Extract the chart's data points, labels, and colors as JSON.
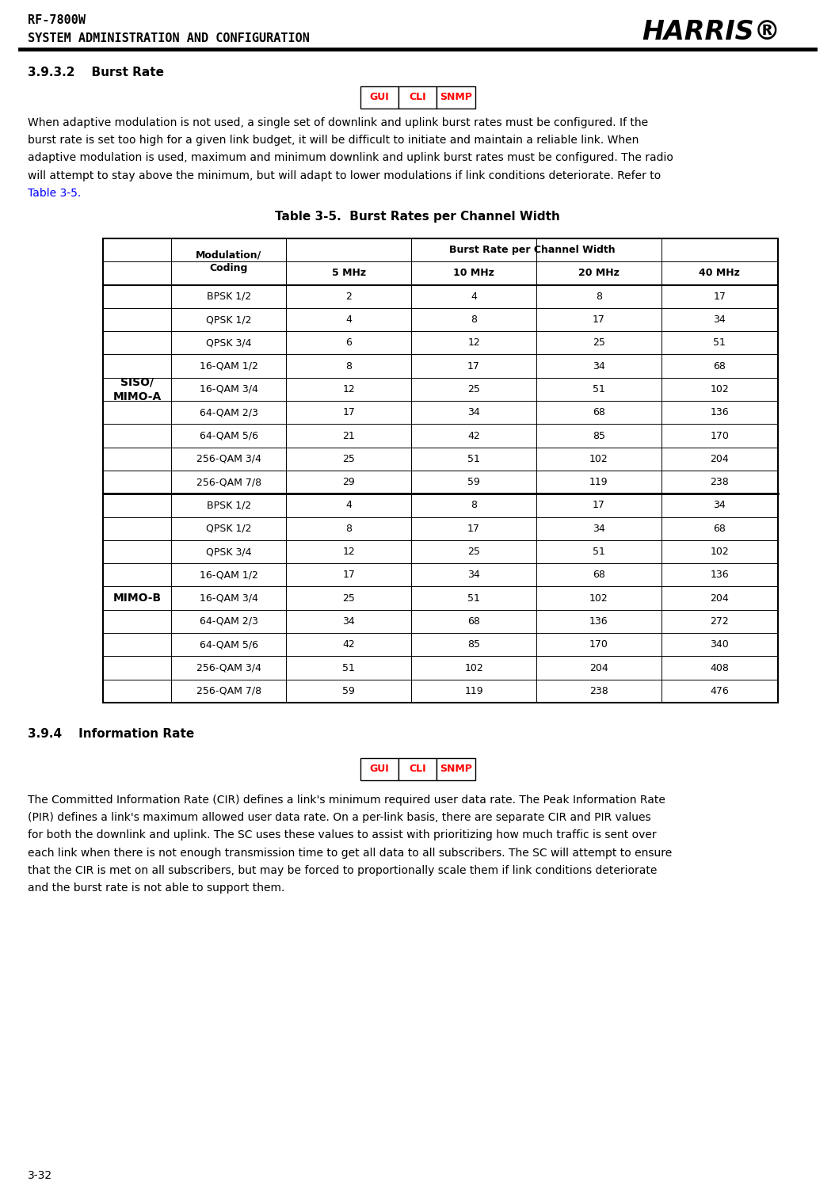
{
  "header_line1": "RF-7800W",
  "header_line2": "SYSTEM ADMINISTRATION AND CONFIGURATION",
  "section_title": "3.9.3.2    Burst Rate",
  "section2_title": "3.9.4    Information Rate",
  "gui_cli_snmp": [
    "GUI",
    "CLI",
    "SNMP"
  ],
  "paragraph1_lines": [
    "When adaptive modulation is not used, a single set of downlink and uplink burst rates must be configured. If the",
    "burst rate is set too high for a given link budget, it will be difficult to initiate and maintain a reliable link. When",
    "adaptive modulation is used, maximum and minimum downlink and uplink burst rates must be configured. The radio",
    "will attempt to stay above the minimum, but will adapt to lower modulations if link conditions deteriorate. Refer to",
    "Table 3-5."
  ],
  "paragraph1_link_line_idx": 4,
  "paragraph1_link_text": "Table 3-5.",
  "table_title": "Table 3-5.  Burst Rates per Channel Width",
  "table_row_group1_label": "SISO/\nMIMO-A",
  "table_row_group2_label": "MIMO-B",
  "table_rows_group1": [
    [
      "BPSK 1/2",
      "2",
      "4",
      "8",
      "17"
    ],
    [
      "QPSK 1/2",
      "4",
      "8",
      "17",
      "34"
    ],
    [
      "QPSK 3/4",
      "6",
      "12",
      "25",
      "51"
    ],
    [
      "16-QAM 1/2",
      "8",
      "17",
      "34",
      "68"
    ],
    [
      "16-QAM 3/4",
      "12",
      "25",
      "51",
      "102"
    ],
    [
      "64-QAM 2/3",
      "17",
      "34",
      "68",
      "136"
    ],
    [
      "64-QAM 5/6",
      "21",
      "42",
      "85",
      "170"
    ],
    [
      "256-QAM 3/4",
      "25",
      "51",
      "102",
      "204"
    ],
    [
      "256-QAM 7/8",
      "29",
      "59",
      "119",
      "238"
    ]
  ],
  "table_rows_group2": [
    [
      "BPSK 1/2",
      "4",
      "8",
      "17",
      "34"
    ],
    [
      "QPSK 1/2",
      "8",
      "17",
      "34",
      "68"
    ],
    [
      "QPSK 3/4",
      "12",
      "25",
      "51",
      "102"
    ],
    [
      "16-QAM 1/2",
      "17",
      "34",
      "68",
      "136"
    ],
    [
      "16-QAM 3/4",
      "25",
      "51",
      "102",
      "204"
    ],
    [
      "64-QAM 2/3",
      "34",
      "68",
      "136",
      "272"
    ],
    [
      "64-QAM 5/6",
      "42",
      "85",
      "170",
      "340"
    ],
    [
      "256-QAM 3/4",
      "51",
      "102",
      "204",
      "408"
    ],
    [
      "256-QAM 7/8",
      "59",
      "119",
      "238",
      "476"
    ]
  ],
  "paragraph2_lines": [
    "The Committed Information Rate (CIR) defines a link's minimum required user data rate. The Peak Information Rate",
    "(PIR) defines a link's maximum allowed user data rate. On a per-link basis, there are separate CIR and PIR values",
    "for both the downlink and uplink. The SC uses these values to assist with prioritizing how much traffic is sent over",
    "each link when there is not enough transmission time to get all data to all subscribers. The SC will attempt to ensure",
    "that the CIR is met on all subscribers, but may be forced to proportionally scale them if link conditions deteriorate",
    "and the burst rate is not able to support them."
  ],
  "footer_text": "3-32",
  "bg_color": "#ffffff",
  "text_color": "#000000",
  "gui_color": "#ff0000",
  "cli_color": "#ff0000",
  "snmp_color": "#ff0000",
  "link_color": "#0000ff"
}
